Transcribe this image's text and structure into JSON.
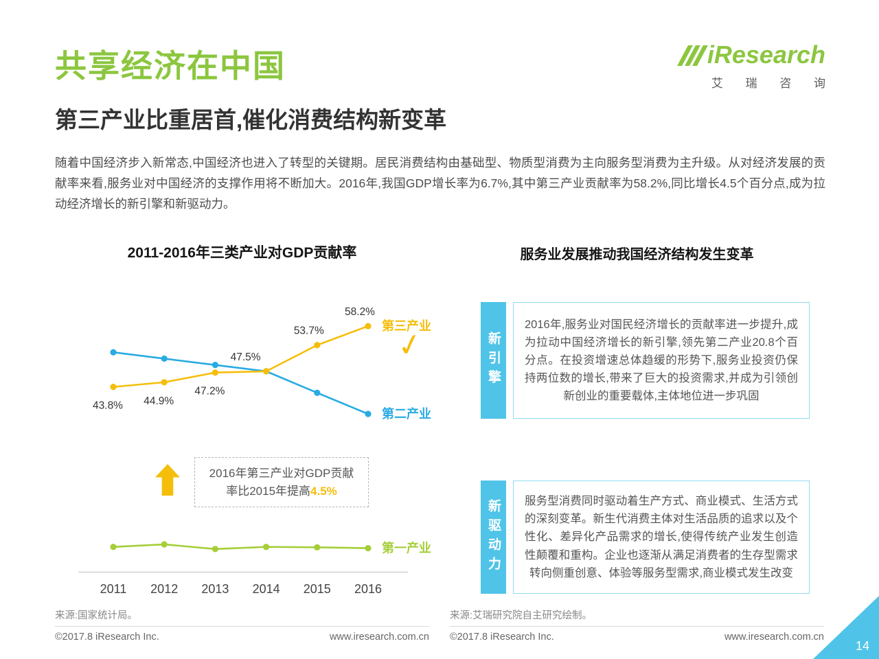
{
  "header": {
    "title": "共享经济在中国",
    "subtitle": "第三产业比重居首,催化消费结构新变革",
    "intro": "随着中国经济步入新常态,中国经济也进入了转型的关键期。居民消费结构由基础型、物质型消费为主向服务型消费为主升级。从对经济发展的贡献率来看,服务业对中国经济的支撑作用将不断加大。2016年,我国GDP增长率为6.7%,其中第三产业贡献率为58.2%,同比增长4.5个百分点,成为拉动经济增长的新引擎和新驱动力。",
    "logo": {
      "wordmark": "iResearch",
      "subtext": "艾 瑞 咨 询"
    }
  },
  "colors": {
    "brand_green": "#8CC63F",
    "accent_yellow": "#F5BE0B",
    "accent_blue": "#29ABE2",
    "panel_blue": "#4FC4E8",
    "primary_green": "#A5CE39"
  },
  "left_section": {
    "chart_title": "2011-2016年三类产业对GDP贡献率",
    "callout": {
      "line1": "2016年第三产业对GDP贡献",
      "line2_prefix": "率比2015年提高",
      "highlight": "4.5%"
    },
    "source": "来源:国家统计局。",
    "footer": {
      "copyright": "©2017.8 iResearch Inc.",
      "website": "www.iresearch.com.cn"
    }
  },
  "right_section": {
    "title": "服务业发展推动我国经济结构发生变革",
    "blocks": [
      {
        "label": "新引擎",
        "text": "2016年,服务业对国民经济增长的贡献率进一步提升,成为拉动中国经济增长的新引擎,领先第二产业20.8个百分点。在投资增速总体趋缓的形势下,服务业投资仍保持两位数的增长,带来了巨大的投资需求,并成为引领创新创业的重要载体,主体地位进一步巩固"
      },
      {
        "label": "新驱动力",
        "text": "服务型消费同时驱动着生产方式、商业模式、生活方式的深刻变革。新生代消费主体对生活品质的追求以及个性化、差异化产品需求的增长,使得传统产业发生创造性颠覆和重构。企业也逐渐从满足消费者的生存型需求转向侧重创意、体验等服务型需求,商业模式发生改变"
      }
    ],
    "source": "来源:艾瑞研究院自主研究绘制。",
    "footer": {
      "copyright": "©2017.8 iResearch Inc.",
      "website": "www.iresearch.com.cn"
    }
  },
  "page_number": "14",
  "chart_data": {
    "type": "line",
    "title": "2011-2016年三类产业对GDP贡献率",
    "categories": [
      "2011",
      "2012",
      "2013",
      "2014",
      "2015",
      "2016"
    ],
    "series": [
      {
        "name": "第三产业",
        "color": "#F5BE0B",
        "values": [
          43.8,
          44.9,
          47.2,
          47.5,
          53.7,
          58.2
        ],
        "point_labels": [
          "43.8%",
          "44.9%",
          "47.2%",
          "47.5%",
          "53.7%",
          "58.2%"
        ]
      },
      {
        "name": "第二产业",
        "color": "#29ABE2",
        "values": [
          52.0,
          50.5,
          49.0,
          47.5,
          42.4,
          37.4
        ]
      },
      {
        "name": "第一产业",
        "color": "#A5CE39",
        "values": [
          5.9,
          6.5,
          5.4,
          5.9,
          5.8,
          5.6
        ]
      }
    ],
    "ylim": [
      0,
      65
    ],
    "xlabel": "",
    "ylabel": "",
    "grid": false,
    "legend_position": "line-end",
    "annotations": {
      "tertiary_check": true,
      "increase_note": "2016年第三产业对GDP贡献率比2015年提高4.5%"
    }
  }
}
